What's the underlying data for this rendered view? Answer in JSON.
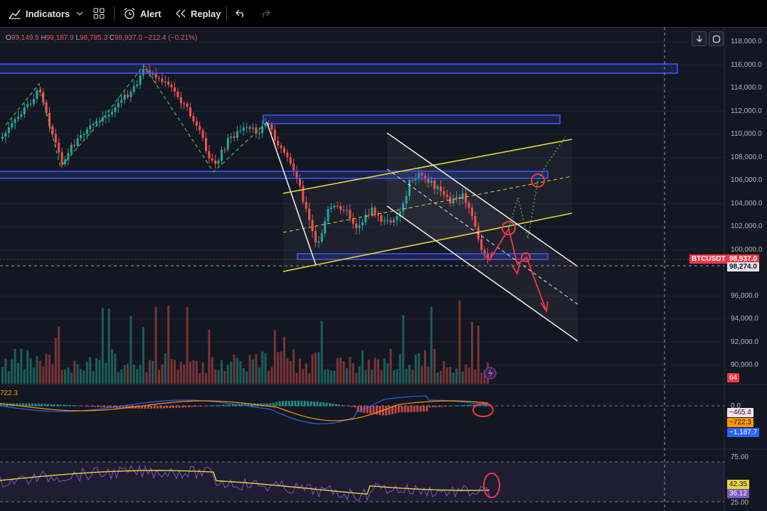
{
  "toolbar": {
    "indicators_label": "Indicators",
    "alert_label": "Alert",
    "replay_label": "Replay"
  },
  "ohlc": {
    "o_label": "O",
    "o": "99,149.5",
    "h_label": "H",
    "h": "99,187.9",
    "l_label": "L",
    "l": "98,785.3",
    "c_label": "C",
    "c": "98,937.0",
    "change": "−212.4 (−0.21%)"
  },
  "price_axis": {
    "ticks": [
      "118,000.0",
      "116,000.0",
      "114,000.0",
      "112,000.0",
      "110,000.0",
      "108,000.0",
      "106,000.0",
      "104,000.0",
      "102,000.0",
      "100,000.0",
      "96,000.0",
      "94,000.0",
      "92,000.0",
      "90,000.0"
    ]
  },
  "tags": {
    "symbol": "BTCUSDT",
    "last_price": "98,937.0",
    "crosshair_price": "98,274.0",
    "volume": "64"
  },
  "macd": {
    "left_label": "722.3",
    "zero_label": "0.0",
    "hist": "−465.4",
    "signal": "−722.3",
    "macd": "−1,187.7"
  },
  "rsi": {
    "upper": "75.00",
    "lower": "25.00",
    "rsi": "42.35",
    "ma": "36.12"
  },
  "colors": {
    "background": "#131722",
    "up": "#26a69a",
    "down": "#ef5350",
    "zone": "#3d5afe",
    "channel": "#e8d43a",
    "annotation": "#f23645"
  }
}
